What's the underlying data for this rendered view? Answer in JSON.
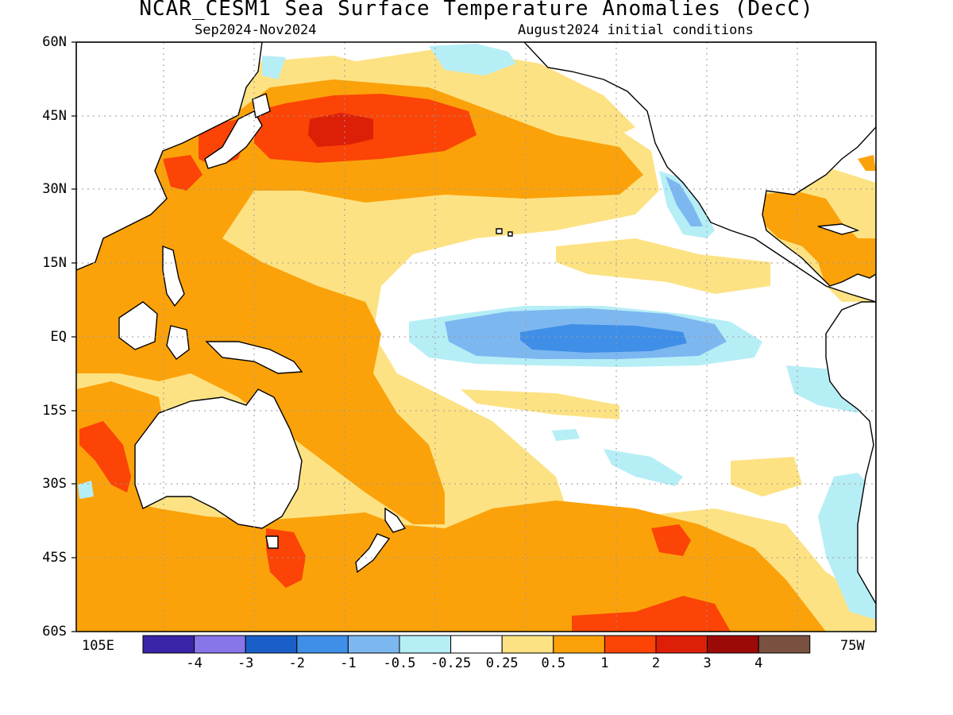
{
  "header": {
    "title": "NCAR_CESM1 Sea Surface Temperature Anomalies (DecC)",
    "period": "Sep2024-Nov2024",
    "init": "August2024 initial conditions"
  },
  "axes": {
    "lat_labels": [
      "60N",
      "45N",
      "30N",
      "15N",
      "EQ",
      "15S",
      "30S",
      "45S",
      "60S"
    ],
    "lon_left": "105E",
    "lon_right": "75W"
  },
  "colorbar": {
    "labels": [
      "-4",
      "-3",
      "-2",
      "-1",
      "-0.5",
      "-0.25",
      "0.25",
      "0.5",
      "1",
      "2",
      "3",
      "4"
    ],
    "colors": [
      "#3a24a8",
      "#8776ea",
      "#1a5fc8",
      "#3f8fe8",
      "#7db7f0",
      "#b6eef6",
      "#ffffff",
      "#fde284",
      "#fba20a",
      "#fb4406",
      "#dd1f08",
      "#9c0a08",
      "#7a5040"
    ]
  },
  "map_colors": {
    "warm1": "#fde284",
    "warm2": "#fba20a",
    "warm3": "#fb4406",
    "warm4": "#dd1f08",
    "cool1": "#b6eef6",
    "cool2": "#7db7f0",
    "cool3": "#3f8fe8",
    "land_outline": "#000000",
    "grid": "#9a9a9a"
  }
}
